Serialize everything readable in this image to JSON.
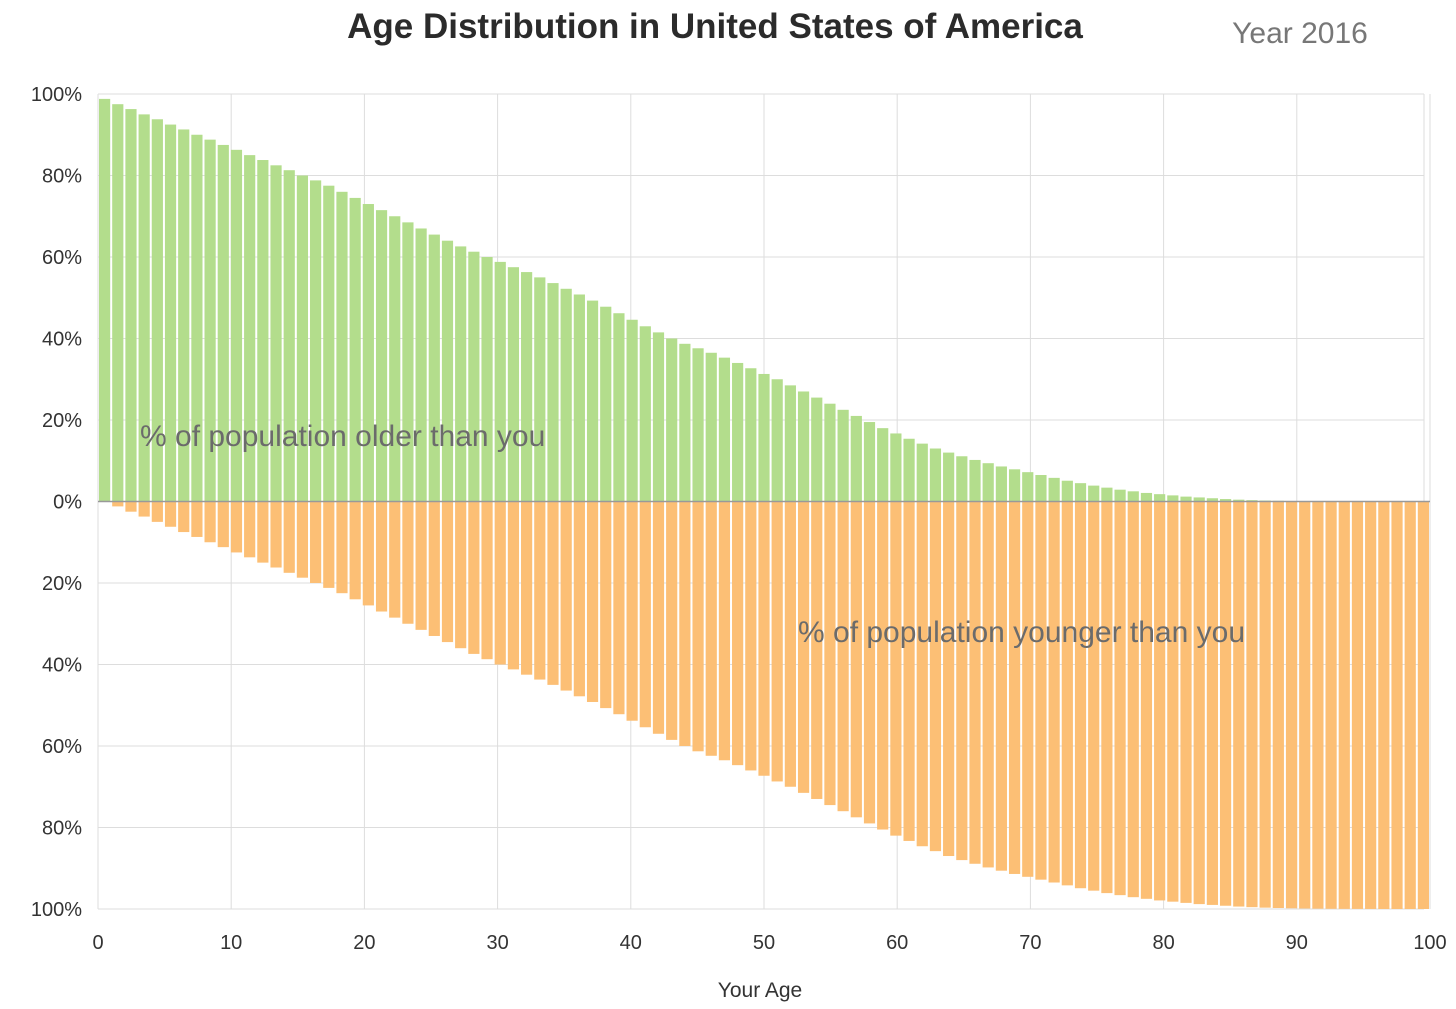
{
  "chart_data": {
    "type": "bar",
    "title": "Age Distribution in United States of America",
    "subtitle": "Year 2016",
    "xlabel": "Your Age",
    "ylabel": "",
    "xlim": [
      0,
      100
    ],
    "ylim": [
      -100,
      100
    ],
    "x_ticks": [
      "0",
      "10",
      "20",
      "30",
      "40",
      "50",
      "60",
      "70",
      "80",
      "90",
      "100"
    ],
    "y_ticks": [
      {
        "value": 100,
        "label": "100%"
      },
      {
        "value": 80,
        "label": "80%"
      },
      {
        "value": 60,
        "label": "60%"
      },
      {
        "value": 40,
        "label": "40%"
      },
      {
        "value": 20,
        "label": "20%"
      },
      {
        "value": 0,
        "label": "0%"
      },
      {
        "value": -20,
        "label": "20%"
      },
      {
        "value": -40,
        "label": "40%"
      },
      {
        "value": -60,
        "label": "60%"
      },
      {
        "value": -80,
        "label": "80%"
      },
      {
        "value": -100,
        "label": "100%"
      }
    ],
    "grid": true,
    "colors": {
      "older": "#b3dd8c",
      "younger": "#fcbf75",
      "grid": "#dddddd",
      "baseline": "#999999"
    },
    "annotations": {
      "older": "% of population older than you",
      "younger": "% of population younger than you"
    },
    "series": [
      {
        "name": "% of population older than you",
        "x": [
          0,
          1,
          2,
          3,
          4,
          5,
          6,
          7,
          8,
          9,
          10,
          11,
          12,
          13,
          14,
          15,
          16,
          17,
          18,
          19,
          20,
          21,
          22,
          23,
          24,
          25,
          26,
          27,
          28,
          29,
          30,
          31,
          32,
          33,
          34,
          35,
          36,
          37,
          38,
          39,
          40,
          41,
          42,
          43,
          44,
          45,
          46,
          47,
          48,
          49,
          50,
          51,
          52,
          53,
          54,
          55,
          56,
          57,
          58,
          59,
          60,
          61,
          62,
          63,
          64,
          65,
          66,
          67,
          68,
          69,
          70,
          71,
          72,
          73,
          74,
          75,
          76,
          77,
          78,
          79,
          80,
          81,
          82,
          83,
          84,
          85,
          86,
          87,
          88,
          89,
          90,
          91,
          92,
          93,
          94,
          95,
          96,
          97,
          98,
          99,
          100
        ],
        "values": [
          98.8,
          97.5,
          96.3,
          95.0,
          93.8,
          92.5,
          91.3,
          90.0,
          88.8,
          87.5,
          86.3,
          85.0,
          83.8,
          82.5,
          81.3,
          80.0,
          78.8,
          77.5,
          76.0,
          74.5,
          73.0,
          71.5,
          70.0,
          68.5,
          67.0,
          65.5,
          64.0,
          62.6,
          61.3,
          60.0,
          58.8,
          57.5,
          56.3,
          55.0,
          53.6,
          52.2,
          50.8,
          49.3,
          47.8,
          46.2,
          44.6,
          43.0,
          41.5,
          40.0,
          38.7,
          37.6,
          36.5,
          35.3,
          34.0,
          32.7,
          31.3,
          30.0,
          28.5,
          27.0,
          25.5,
          24.0,
          22.5,
          21.0,
          19.5,
          18.0,
          16.7,
          15.4,
          14.2,
          13.0,
          12.0,
          11.1,
          10.2,
          9.4,
          8.6,
          7.9,
          7.2,
          6.5,
          5.8,
          5.1,
          4.5,
          3.9,
          3.4,
          2.9,
          2.5,
          2.1,
          1.8,
          1.5,
          1.2,
          1.0,
          0.8,
          0.6,
          0.45,
          0.33,
          0.24,
          0.17,
          0.12,
          0.08,
          0.05,
          0.03,
          0.02,
          0.01,
          0.0,
          0.0,
          0.0,
          0.0,
          0.0
        ]
      },
      {
        "name": "% of population younger than you",
        "x": [
          0,
          1,
          2,
          3,
          4,
          5,
          6,
          7,
          8,
          9,
          10,
          11,
          12,
          13,
          14,
          15,
          16,
          17,
          18,
          19,
          20,
          21,
          22,
          23,
          24,
          25,
          26,
          27,
          28,
          29,
          30,
          31,
          32,
          33,
          34,
          35,
          36,
          37,
          38,
          39,
          40,
          41,
          42,
          43,
          44,
          45,
          46,
          47,
          48,
          49,
          50,
          51,
          52,
          53,
          54,
          55,
          56,
          57,
          58,
          59,
          60,
          61,
          62,
          63,
          64,
          65,
          66,
          67,
          68,
          69,
          70,
          71,
          72,
          73,
          74,
          75,
          76,
          77,
          78,
          79,
          80,
          81,
          82,
          83,
          84,
          85,
          86,
          87,
          88,
          89,
          90,
          91,
          92,
          93,
          94,
          95,
          96,
          97,
          98,
          99,
          100
        ],
        "values": [
          0.0,
          1.2,
          2.5,
          3.7,
          5.0,
          6.2,
          7.5,
          8.7,
          10.0,
          11.2,
          12.5,
          13.7,
          15.0,
          16.2,
          17.5,
          18.7,
          20.0,
          21.2,
          22.5,
          24.0,
          25.5,
          27.0,
          28.5,
          30.0,
          31.5,
          33.0,
          34.5,
          36.0,
          37.4,
          38.7,
          40.0,
          41.2,
          42.5,
          43.7,
          45.0,
          46.4,
          47.8,
          49.2,
          50.7,
          52.2,
          53.8,
          55.4,
          57.0,
          58.5,
          60.0,
          61.3,
          62.4,
          63.5,
          64.7,
          66.0,
          67.3,
          68.7,
          70.0,
          71.5,
          73.0,
          74.5,
          76.0,
          77.5,
          79.0,
          80.5,
          82.0,
          83.3,
          84.6,
          85.8,
          87.0,
          88.0,
          88.9,
          89.8,
          90.6,
          91.4,
          92.1,
          92.8,
          93.5,
          94.2,
          94.9,
          95.5,
          96.1,
          96.6,
          97.1,
          97.5,
          97.9,
          98.2,
          98.5,
          98.8,
          99.0,
          99.2,
          99.4,
          99.55,
          99.67,
          99.76,
          99.83,
          99.88,
          99.92,
          99.95,
          99.97,
          99.98,
          99.99,
          100.0,
          100.0,
          100.0,
          100.0
        ]
      }
    ]
  }
}
